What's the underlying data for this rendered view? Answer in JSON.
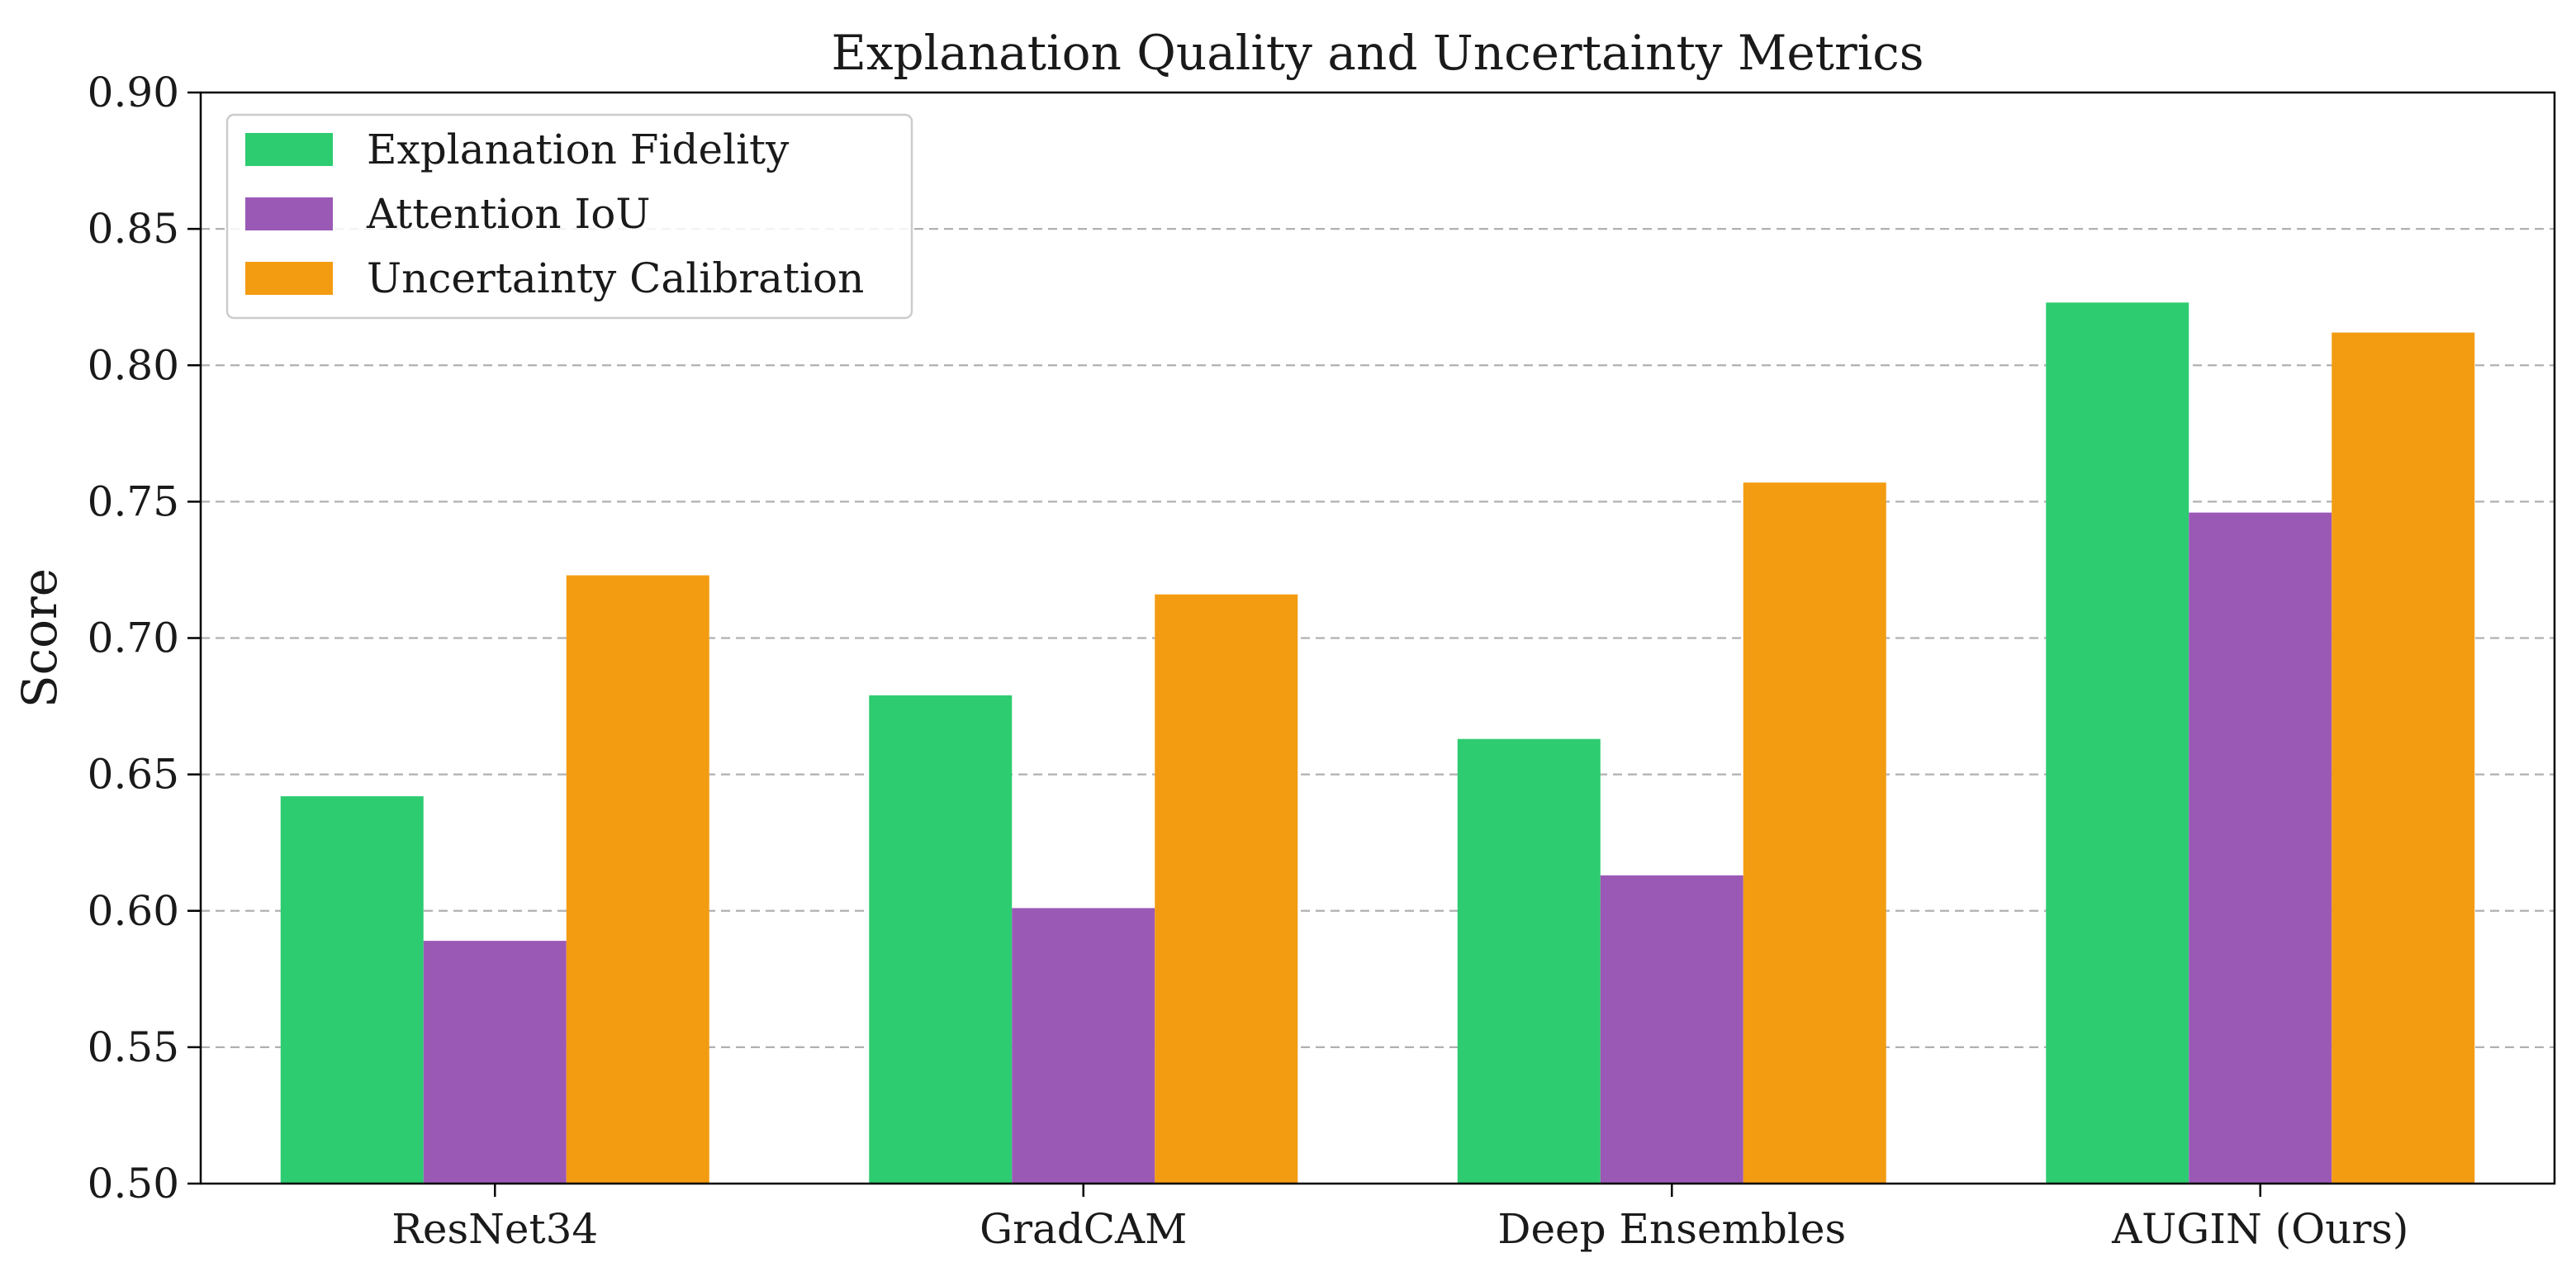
{
  "chart_data": {
    "type": "bar",
    "title": "Explanation Quality and Uncertainty Metrics",
    "xlabel": "",
    "ylabel": "Score",
    "ylim": [
      0.5,
      0.9
    ],
    "yticks": [
      "0.50",
      "0.55",
      "0.60",
      "0.65",
      "0.70",
      "0.75",
      "0.80",
      "0.85",
      "0.90"
    ],
    "categories": [
      "ResNet34",
      "GradCAM",
      "Deep Ensembles",
      "AUGIN (Ours)"
    ],
    "series": [
      {
        "name": "Explanation Fidelity",
        "color": "#2ecc71",
        "values": [
          0.642,
          0.679,
          0.663,
          0.823
        ]
      },
      {
        "name": "Attention IoU",
        "color": "#9b59b6",
        "values": [
          0.589,
          0.601,
          0.613,
          0.746
        ]
      },
      {
        "name": "Uncertainty Calibration",
        "color": "#f39c12",
        "values": [
          0.723,
          0.716,
          0.757,
          0.812
        ]
      }
    ],
    "grid": "y-dashed",
    "legend_position": "top-left"
  }
}
